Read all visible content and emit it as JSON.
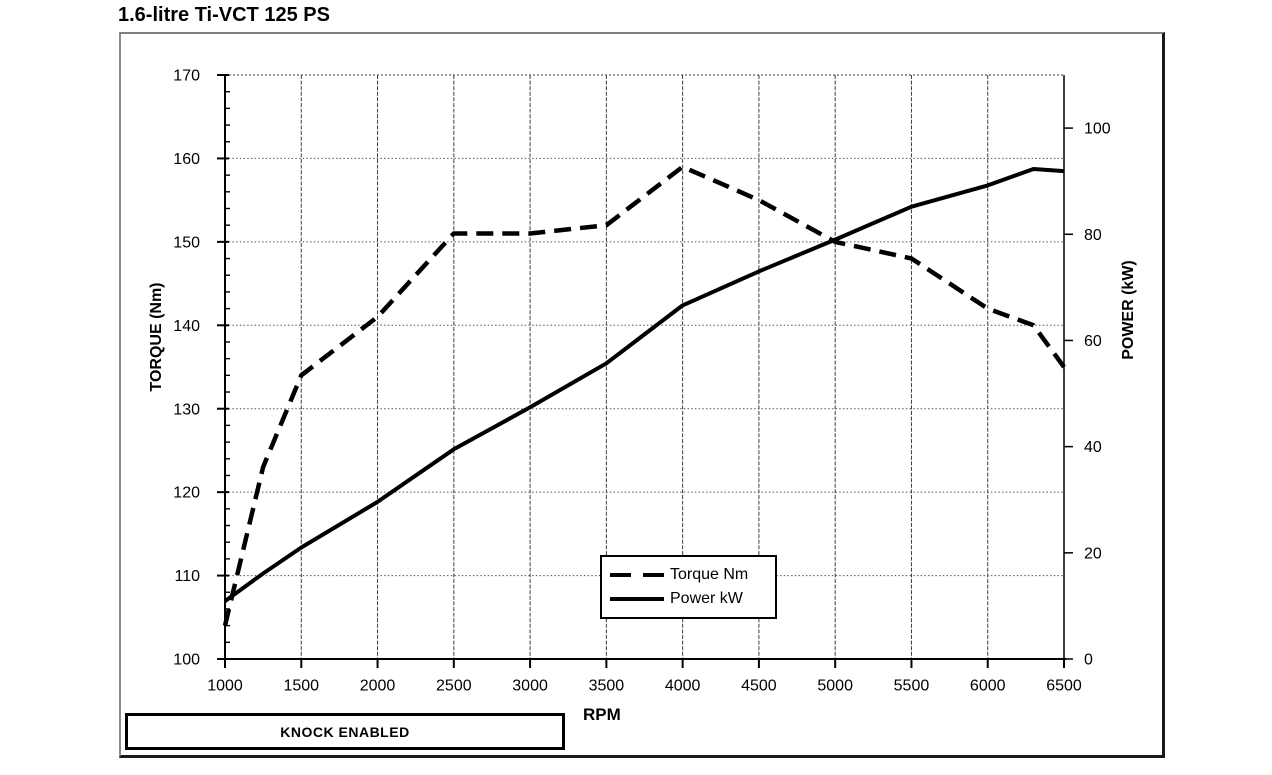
{
  "title": "1.6-litre Ti-VCT 125 PS",
  "annotation_box": {
    "label": "KNOCK ENABLED"
  },
  "legend": {
    "position": "inside-bottom-center",
    "items": [
      {
        "label": "Torque Nm",
        "style": "dashed"
      },
      {
        "label": "Power kW",
        "style": "solid"
      }
    ]
  },
  "colors": {
    "curves": "#000000",
    "background": "#ffffff",
    "frame_border_light": "#808080",
    "frame_border_dark": "#1a1a1a",
    "gridline": "#555555"
  },
  "chart_data": {
    "type": "line",
    "title": "1.6-litre Ti-VCT 125 PS",
    "xlabel": "RPM",
    "xlim": [
      1000,
      6500
    ],
    "x_ticks": [
      1000,
      1500,
      2000,
      2500,
      3000,
      3500,
      4000,
      4500,
      5000,
      5500,
      6000,
      6500
    ],
    "grid": true,
    "left_axis": {
      "label": "TORQUE (Nm)",
      "lim": [
        100,
        170
      ],
      "ticks": [
        100,
        110,
        120,
        130,
        140,
        150,
        160,
        170
      ],
      "minor_tick_step": 2
    },
    "right_axis": {
      "label": "POWER (kW)",
      "lim": [
        0,
        110
      ],
      "ticks": [
        0,
        20,
        40,
        60,
        80,
        100
      ]
    },
    "series": [
      {
        "name": "Torque Nm",
        "axis": "left",
        "style": "dashed",
        "x": [
          1000,
          1250,
          1500,
          2000,
          2500,
          3000,
          3500,
          4000,
          4500,
          5000,
          5500,
          6000,
          6300,
          6500
        ],
        "values": [
          104,
          123,
          134,
          141,
          151,
          151,
          152,
          159,
          155,
          150,
          148,
          142,
          140,
          135
        ]
      },
      {
        "name": "Power kW",
        "axis": "right",
        "style": "solid",
        "x": [
          1000,
          1250,
          1500,
          2000,
          2500,
          3000,
          3500,
          4000,
          4500,
          5000,
          5500,
          6000,
          6300,
          6500
        ],
        "values": [
          10.9,
          16.1,
          21.0,
          29.6,
          39.5,
          47.4,
          55.7,
          66.6,
          73.0,
          79.0,
          85.2,
          89.2,
          92.3,
          91.9
        ]
      }
    ]
  }
}
